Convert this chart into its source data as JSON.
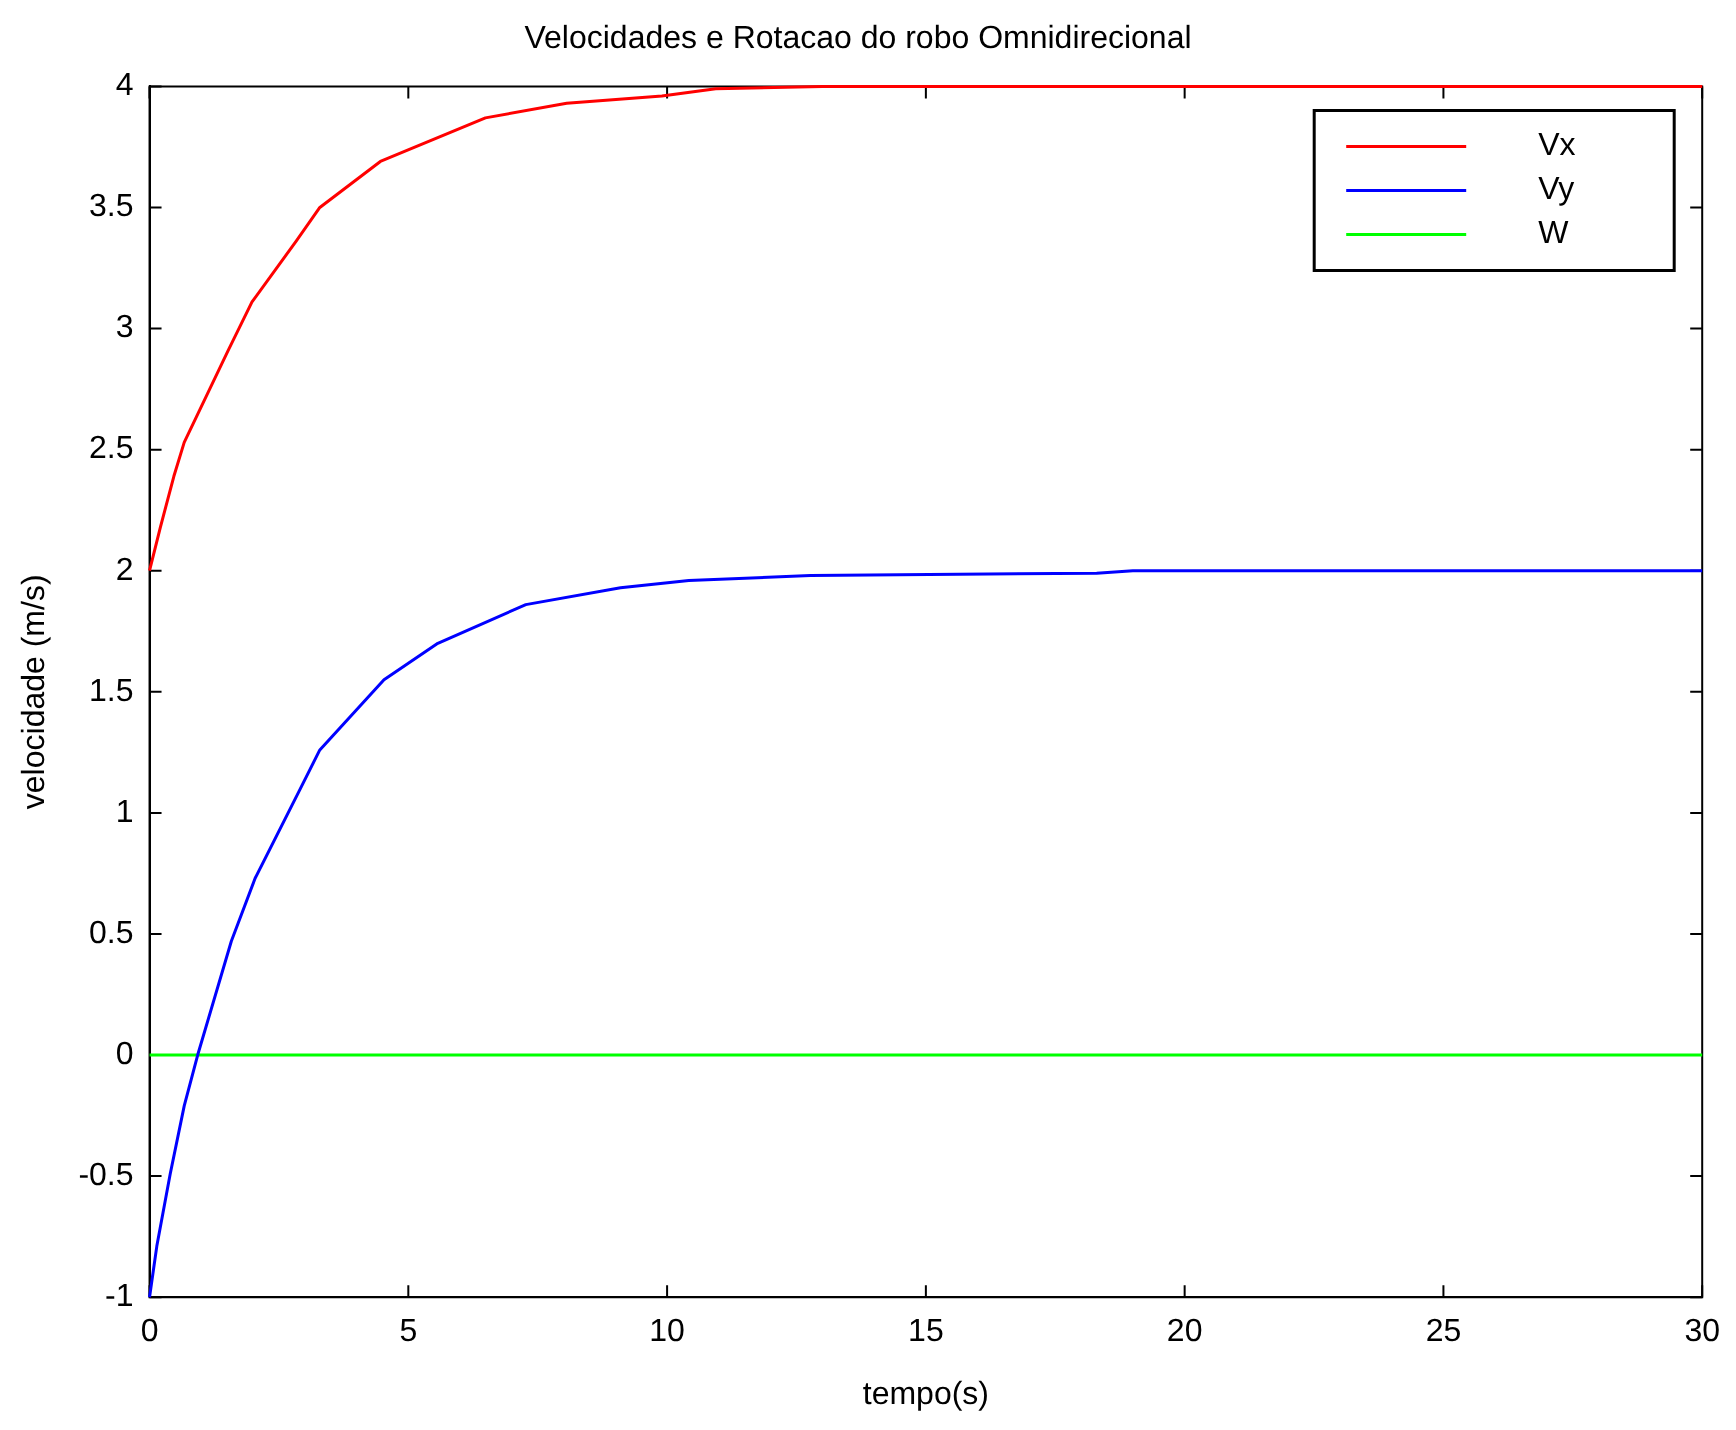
{
  "chart_data": {
    "type": "line",
    "title": "Velocidades e Rotacao do robo Omnidirecional",
    "xlabel": "tempo(s)",
    "ylabel": "velocidade (m/s)",
    "xlim": [
      0,
      30
    ],
    "xticks": [
      0,
      5,
      10,
      15,
      20,
      25,
      30
    ],
    "ylim": [
      -1,
      4
    ],
    "yticks": [
      -1,
      -0.5,
      0,
      0.5,
      1,
      1.5,
      2,
      2.5,
      3,
      3.5,
      4
    ],
    "legend": "top right",
    "grid": false,
    "marker": "none",
    "line_style": "solid",
    "series": [
      {
        "name": "Vx",
        "color": "#ff0000",
        "x": [
          0,
          0.21,
          0.47,
          0.67,
          1.52,
          1.98,
          2.83,
          3.29,
          4.46,
          6.49,
          8.06,
          9.9,
          10.94,
          13,
          30
        ],
        "values": [
          2,
          2.18,
          2.39,
          2.53,
          2.91,
          3.11,
          3.36,
          3.5,
          3.69,
          3.87,
          3.93,
          3.96,
          3.99,
          4,
          4
        ]
      },
      {
        "name": "Vy",
        "color": "#0000ff",
        "x": [
          0,
          0.14,
          0.4,
          0.67,
          0.93,
          1.58,
          2.04,
          2.89,
          3.29,
          4.53,
          5.57,
          7.27,
          9.1,
          10.42,
          12.77,
          18.3,
          19,
          30
        ],
        "values": [
          -1,
          -0.79,
          -0.49,
          -0.21,
          0,
          0.47,
          0.73,
          1.09,
          1.26,
          1.55,
          1.7,
          1.86,
          1.93,
          1.96,
          1.98,
          1.99,
          2,
          2
        ]
      },
      {
        "name": "W",
        "color": "#00ff00",
        "x": [
          0,
          30
        ],
        "values": [
          0,
          0
        ]
      }
    ]
  }
}
